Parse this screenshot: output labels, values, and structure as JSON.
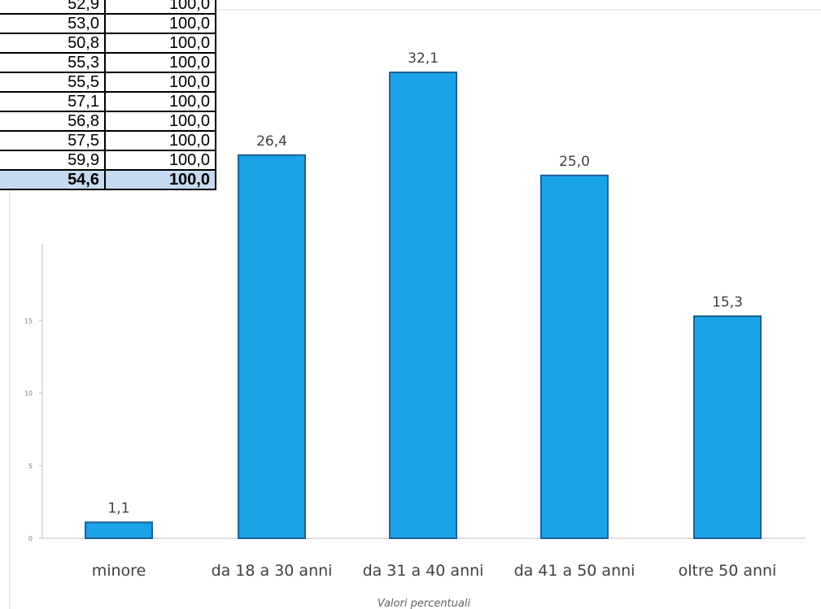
{
  "table": {
    "rows": [
      {
        "a": "52,9",
        "b": "100,0"
      },
      {
        "a": "53,0",
        "b": "100,0"
      },
      {
        "a": "50,8",
        "b": "100,0"
      },
      {
        "a": "55,3",
        "b": "100,0"
      },
      {
        "a": "55,5",
        "b": "100,0"
      },
      {
        "a": "57,1",
        "b": "100,0"
      },
      {
        "a": "56,8",
        "b": "100,0"
      },
      {
        "a": "57,5",
        "b": "100,0"
      },
      {
        "a": "59,9",
        "b": "100,0"
      }
    ],
    "total": {
      "a": "54,6",
      "b": "100,0"
    },
    "total_row_color": "#c5d9f1"
  },
  "chart_data": {
    "type": "bar",
    "categories": [
      "minore",
      "da 18 a 30 anni",
      "da 31 a 40 anni",
      "da 41 a 50 anni",
      "oltre 50 anni"
    ],
    "values": [
      1.1,
      26.4,
      32.1,
      25.0,
      15.3
    ],
    "value_labels": [
      "1,1",
      "26,4",
      "32,1",
      "25,0",
      "15,3"
    ],
    "title": "",
    "xlabel": "Valori percentuali",
    "ylabel": "",
    "ylim": [
      0,
      35
    ],
    "yticks": [
      0,
      5,
      10,
      15
    ],
    "ytick_labels": [
      "0",
      "5",
      "10",
      "15"
    ],
    "grid": false,
    "bar_color": "#1aa3e8",
    "bar_edge_color": "#1f5f95"
  }
}
